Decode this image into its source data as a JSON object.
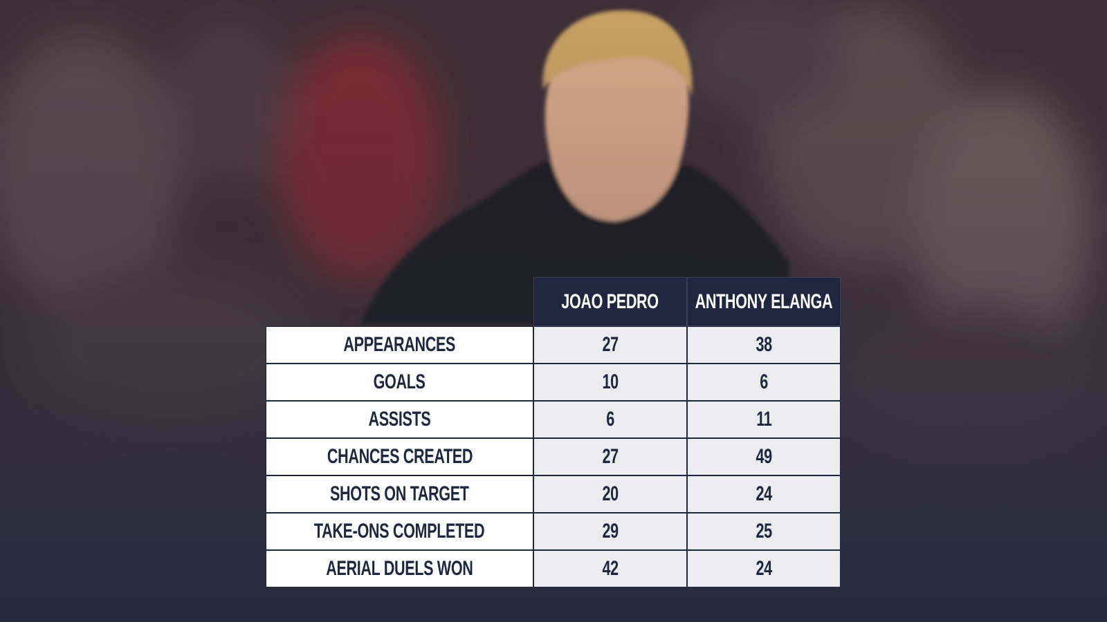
{
  "table": {
    "header": [
      "JOAO PEDRO",
      "ANTHONY ELANGA"
    ],
    "rows": [
      [
        "APPEARANCES",
        27,
        38
      ],
      [
        "GOALS",
        10,
        6
      ],
      [
        "ASSISTS",
        6,
        11
      ],
      [
        "CHANCES CREATED",
        27,
        49
      ],
      [
        "SHOTS ON TARGET",
        20,
        24
      ],
      [
        "TAKE-ONS COMPLETED",
        29,
        25
      ],
      [
        "AERIAL DUELS WON",
        42,
        24
      ]
    ]
  }
}
